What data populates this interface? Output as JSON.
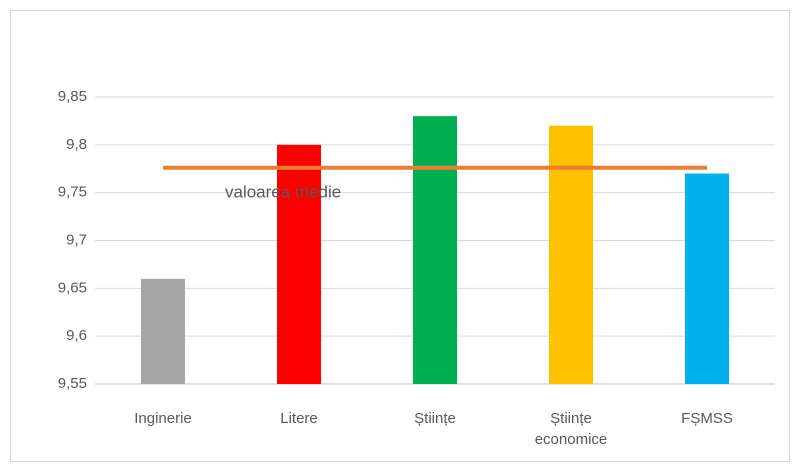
{
  "chart_data": {
    "type": "bar",
    "categories": [
      "Inginerie",
      "Litere",
      "Științe",
      "Științe economice",
      "FȘMSS"
    ],
    "values": [
      9.66,
      9.8,
      9.83,
      9.82,
      9.77
    ],
    "colors": [
      "#a5a5a5",
      "#ff0000",
      "#00b050",
      "#ffc000",
      "#00b0f0"
    ],
    "ylim": [
      9.55,
      9.85
    ],
    "yticks": [
      {
        "value": 9.55,
        "label": "9,55"
      },
      {
        "value": 9.6,
        "label": "9,6"
      },
      {
        "value": 9.65,
        "label": "9,65"
      },
      {
        "value": 9.7,
        "label": "9,7"
      },
      {
        "value": 9.75,
        "label": "9,75"
      },
      {
        "value": 9.8,
        "label": "9,8"
      },
      {
        "value": 9.85,
        "label": "9,85"
      }
    ],
    "grid": true,
    "mean": {
      "name": "valoarea medie",
      "value": 9.776,
      "color": "#ed7d31"
    }
  }
}
